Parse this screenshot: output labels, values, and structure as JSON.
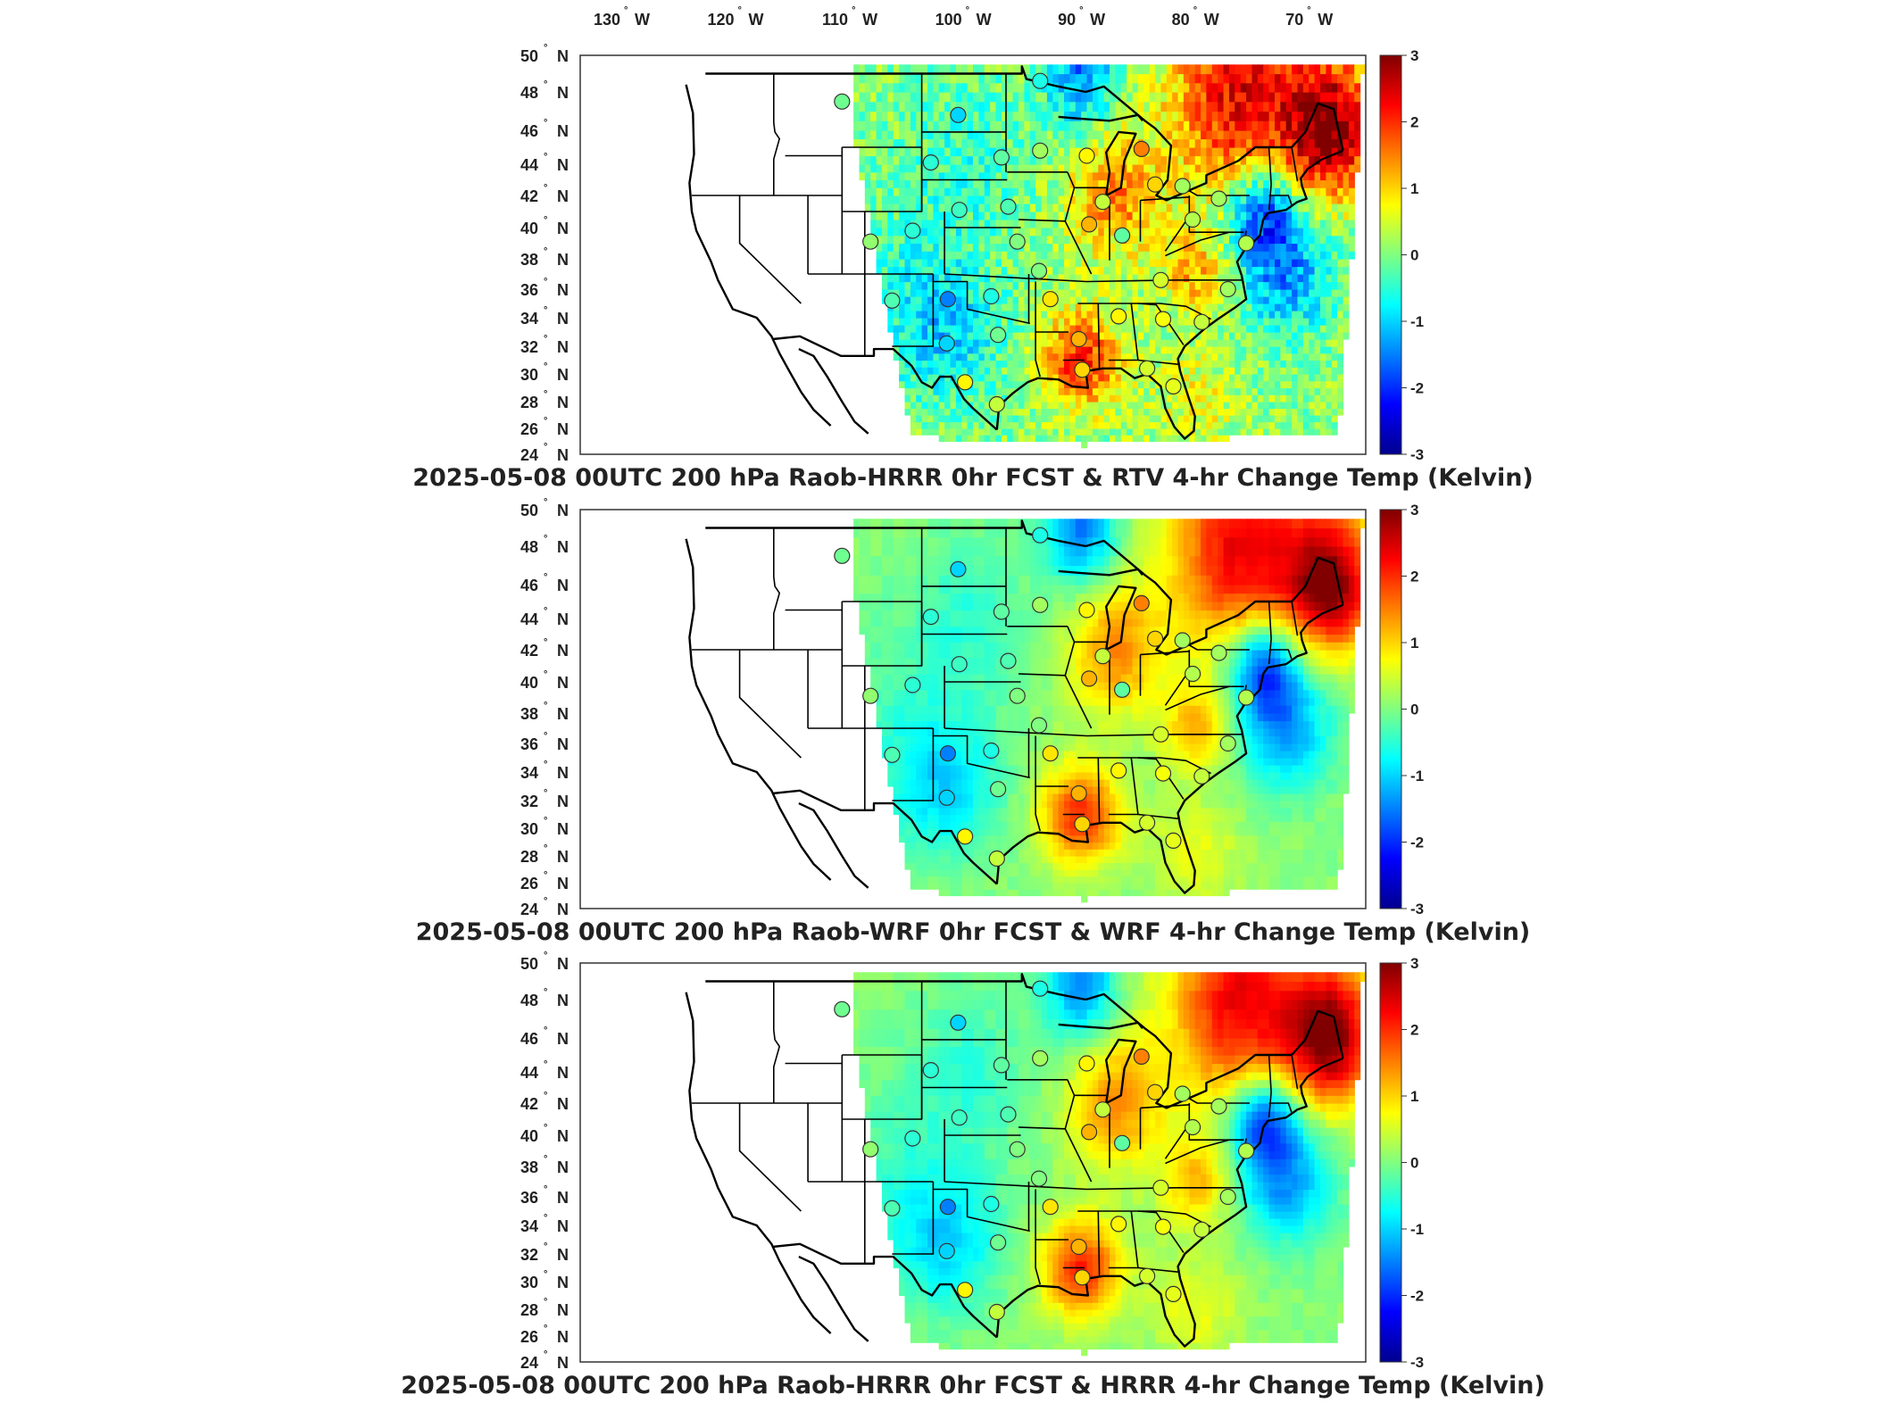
{
  "figure": {
    "lon_ticks": [
      {
        "deg": "130",
        "hem": "W"
      },
      {
        "deg": "120",
        "hem": "W"
      },
      {
        "deg": "110",
        "hem": "W"
      },
      {
        "deg": "100",
        "hem": "W"
      },
      {
        "deg": "90",
        "hem": "W"
      },
      {
        "deg": "80",
        "hem": "W"
      },
      {
        "deg": "70",
        "hem": "W"
      }
    ],
    "lat_ticks": [
      {
        "deg": "50",
        "hem": "N"
      },
      {
        "deg": "48",
        "hem": "N"
      },
      {
        "deg": "46",
        "hem": "N"
      },
      {
        "deg": "44",
        "hem": "N"
      },
      {
        "deg": "42",
        "hem": "N"
      },
      {
        "deg": "40",
        "hem": "N"
      },
      {
        "deg": "38",
        "hem": "N"
      },
      {
        "deg": "36",
        "hem": "N"
      },
      {
        "deg": "34",
        "hem": "N"
      },
      {
        "deg": "32",
        "hem": "N"
      },
      {
        "deg": "30",
        "hem": "N"
      },
      {
        "deg": "28",
        "hem": "N"
      },
      {
        "deg": "26",
        "hem": "N"
      },
      {
        "deg": "24",
        "hem": "N"
      }
    ],
    "colorbar": {
      "ticks": [
        "3",
        "2",
        "1",
        "0",
        "-1",
        "-2",
        "-3"
      ],
      "colormap": [
        "#00008f",
        "#0000ff",
        "#0080ff",
        "#00ffff",
        "#80ff80",
        "#ffff00",
        "#ff8000",
        "#ff0000",
        "#800000"
      ]
    },
    "panels": [
      {
        "title": "2025-05-08 00UTC 200 hPa Raob-HRRR 0hr FCST & RTV 4-hr Change Temp (Kelvin)",
        "style": "noisy"
      },
      {
        "title": "2025-05-08 00UTC 200 hPa Raob-WRF 0hr FCST & WRF 4-hr Change Temp (Kelvin)",
        "style": "smooth"
      },
      {
        "title": "2025-05-08 00UTC 200 hPa Raob-HRRR 0hr FCST & HRRR 4-hr Change Temp (Kelvin)",
        "style": "smooth"
      }
    ],
    "stations": [
      {
        "lon": -111.0,
        "lat": 47.5,
        "v": -0.1
      },
      {
        "lon": -100.8,
        "lat": 46.8,
        "v": -1.0
      },
      {
        "lon": -97.0,
        "lat": 44.4,
        "v": -0.2
      },
      {
        "lon": -103.2,
        "lat": 44.1,
        "v": -0.5
      },
      {
        "lon": -93.6,
        "lat": 48.6,
        "v": -0.6
      },
      {
        "lon": -93.6,
        "lat": 44.8,
        "v": 0.2
      },
      {
        "lon": -89.5,
        "lat": 44.5,
        "v": 0.8
      },
      {
        "lon": -84.7,
        "lat": 44.9,
        "v": 1.5
      },
      {
        "lon": -83.5,
        "lat": 42.7,
        "v": 1.0
      },
      {
        "lon": -88.1,
        "lat": 41.6,
        "v": 0.4
      },
      {
        "lon": -89.3,
        "lat": 40.2,
        "v": 1.2
      },
      {
        "lon": -96.4,
        "lat": 41.3,
        "v": -0.3
      },
      {
        "lon": -100.7,
        "lat": 41.1,
        "v": -0.4
      },
      {
        "lon": -108.5,
        "lat": 39.1,
        "v": 0.1
      },
      {
        "lon": -104.8,
        "lat": 39.8,
        "v": -0.5
      },
      {
        "lon": -95.6,
        "lat": 39.1,
        "v": 0.0
      },
      {
        "lon": -86.4,
        "lat": 39.5,
        "v": -0.2
      },
      {
        "lon": -80.2,
        "lat": 40.5,
        "v": 0.3
      },
      {
        "lon": -81.1,
        "lat": 42.6,
        "v": 0.2
      },
      {
        "lon": -77.9,
        "lat": 41.8,
        "v": 0.2
      },
      {
        "lon": -75.5,
        "lat": 39.0,
        "v": 0.3
      },
      {
        "lon": -93.7,
        "lat": 37.2,
        "v": 0.0
      },
      {
        "lon": -83.0,
        "lat": 36.6,
        "v": 0.5
      },
      {
        "lon": -77.1,
        "lat": 36.0,
        "v": 0.2
      },
      {
        "lon": -79.4,
        "lat": 33.7,
        "v": 0.4
      },
      {
        "lon": -86.7,
        "lat": 34.1,
        "v": 0.8
      },
      {
        "lon": -90.2,
        "lat": 32.5,
        "v": 1.2
      },
      {
        "lon": -92.7,
        "lat": 35.3,
        "v": 0.9
      },
      {
        "lon": -97.9,
        "lat": 35.5,
        "v": -0.6
      },
      {
        "lon": -101.7,
        "lat": 35.3,
        "v": -1.5
      },
      {
        "lon": -106.6,
        "lat": 35.2,
        "v": -0.3
      },
      {
        "lon": -97.3,
        "lat": 32.8,
        "v": -0.1
      },
      {
        "lon": -101.8,
        "lat": 32.2,
        "v": -1.0
      },
      {
        "lon": -82.8,
        "lat": 33.9,
        "v": 0.7
      },
      {
        "lon": -89.9,
        "lat": 30.3,
        "v": 1.0
      },
      {
        "lon": -81.9,
        "lat": 29.1,
        "v": 0.6
      },
      {
        "lon": -97.4,
        "lat": 27.8,
        "v": 0.4
      },
      {
        "lon": -100.2,
        "lat": 29.4,
        "v": 0.8
      },
      {
        "lon": -84.2,
        "lat": 30.4,
        "v": 0.5
      }
    ]
  }
}
